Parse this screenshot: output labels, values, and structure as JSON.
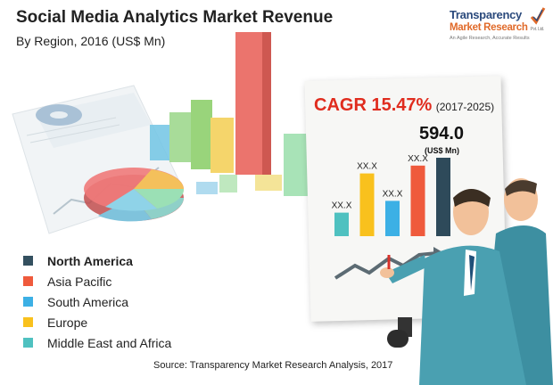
{
  "header": {
    "title": "Social Media Analytics Market Revenue",
    "subtitle": "By Region, 2016 (US$ Mn)"
  },
  "logo": {
    "line1": "Transparency",
    "line2": "Market Research",
    "line2_suffix": "Pvt. Ltd.",
    "tagline": "An Agile Research, Accurate Results"
  },
  "chart_data": {
    "type": "bar",
    "categories": [
      "Middle East and Africa",
      "Europe",
      "South America",
      "Asia Pacific",
      "North America"
    ],
    "value_labels": [
      "XX.X",
      "XX.X",
      "XX.X",
      "XX.X",
      ""
    ],
    "relative_heights": [
      0.3,
      0.8,
      0.45,
      0.9,
      1.0
    ],
    "colors": [
      "#4fc1c0",
      "#f9c11d",
      "#3cb0e5",
      "#ef5a3c",
      "#2e4a5a"
    ],
    "total_value": "594.0",
    "total_unit": "(US$ Mn)",
    "cagr_label": "CAGR 15.47%",
    "cagr_period": "(2017-2025)",
    "title": "Social Media Analytics Market Revenue",
    "subtitle": "By Region, 2016 (US$ Mn)"
  },
  "legend": [
    {
      "label": "North America",
      "color": "#34505f",
      "bold": true
    },
    {
      "label": "Asia Pacific",
      "color": "#ef5a3c",
      "bold": false
    },
    {
      "label": "South America",
      "color": "#3cb0e5",
      "bold": false
    },
    {
      "label": "Europe",
      "color": "#f9c11d",
      "bold": false
    },
    {
      "label": "Middle East and Africa",
      "color": "#4fc1c0",
      "bold": false
    }
  ],
  "footer": {
    "source": "Source: Transparency Market Research Analysis, 2017"
  }
}
